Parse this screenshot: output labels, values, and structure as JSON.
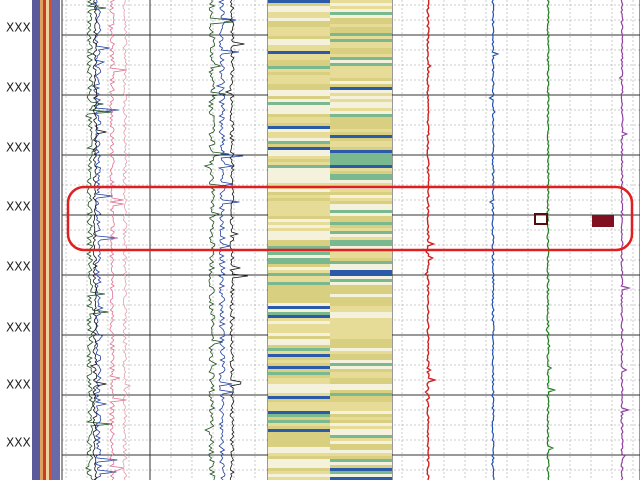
{
  "depth_labels": [
    "XXX",
    "XXX",
    "XXX",
    "XXX",
    "XXX",
    "XXX",
    "XXX",
    "XXX"
  ]
}
